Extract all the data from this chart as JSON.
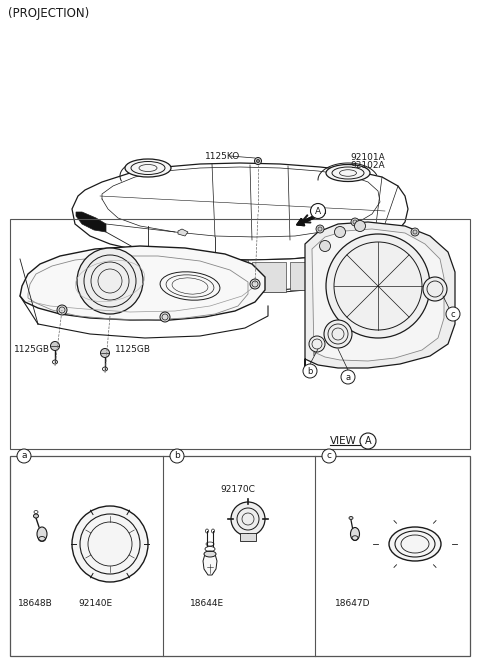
{
  "title": "(PROJECTION)",
  "bg_color": "#ffffff",
  "line_color": "#1a1a1a",
  "gray_fill": "#f0f0f0",
  "dark_fill": "#222222",
  "labels": {
    "bolt1": "1125KO",
    "bolt2a": "1125GB",
    "bolt2b": "1125GB",
    "part_main1": "92101A",
    "part_main2": "92102A",
    "view": "VIEW",
    "circle_a": "A",
    "circle_b": "b",
    "circle_aa": "a",
    "circle_c": "c",
    "part_a1": "18648B",
    "part_a2": "92140E",
    "part_b1": "92170C",
    "part_b2": "18644E",
    "part_c1": "18647D"
  },
  "font_size": 6.5,
  "border_color": "#555555"
}
